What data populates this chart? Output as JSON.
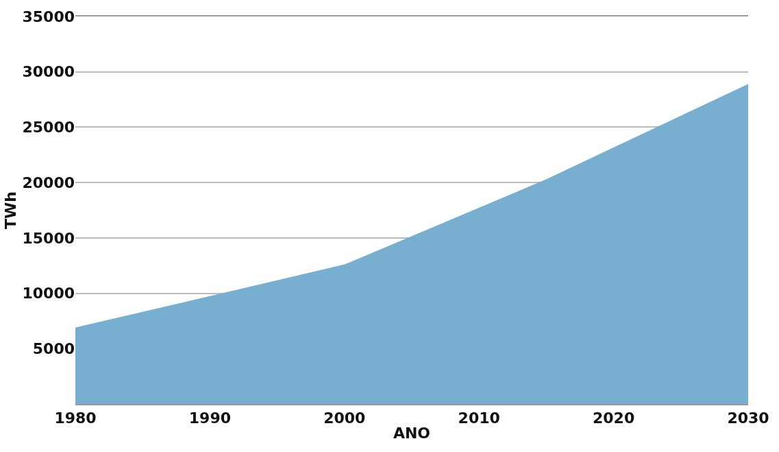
{
  "chart_data": {
    "type": "area",
    "xlabel": "ANO",
    "ylabel": "TWh",
    "x": [
      1980,
      2000,
      2015,
      2030
    ],
    "series": [
      {
        "color": "#78aecf",
        "values": [
          6900,
          12600,
          20300,
          28900
        ]
      }
    ],
    "xlim": [
      1980,
      2030
    ],
    "xticks": [
      1980,
      1990,
      2000,
      2010,
      2020,
      2030
    ],
    "ylim": [
      0,
      35000
    ],
    "yticks": [
      5000,
      10000,
      15000,
      20000,
      25000,
      30000,
      35000
    ],
    "grid": "y"
  }
}
